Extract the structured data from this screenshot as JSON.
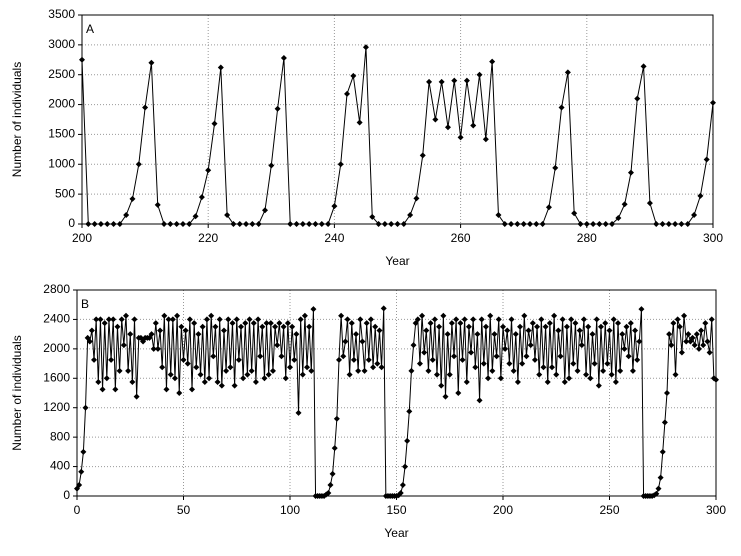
{
  "chart_data": [
    {
      "type": "line",
      "panel_label": "A",
      "xlabel": "Year",
      "ylabel": "Number of individuals",
      "color": "#000000",
      "grid": true,
      "xlim": [
        200,
        300
      ],
      "xticks": [
        200,
        220,
        240,
        260,
        280,
        300
      ],
      "ylim": [
        0,
        3500
      ],
      "yticks": [
        0,
        500,
        1000,
        1500,
        2000,
        2500,
        3000,
        3500
      ],
      "x": [
        200,
        201,
        202,
        203,
        204,
        205,
        206,
        207,
        208,
        209,
        210,
        211,
        212,
        213,
        214,
        215,
        216,
        217,
        218,
        219,
        220,
        221,
        222,
        223,
        224,
        225,
        226,
        227,
        228,
        229,
        230,
        231,
        232,
        233,
        234,
        235,
        236,
        237,
        238,
        239,
        240,
        241,
        242,
        243,
        244,
        245,
        246,
        247,
        248,
        249,
        250,
        251,
        252,
        253,
        254,
        255,
        256,
        257,
        258,
        259,
        260,
        261,
        262,
        263,
        264,
        265,
        266,
        267,
        268,
        269,
        270,
        271,
        272,
        273,
        274,
        275,
        276,
        277,
        278,
        279,
        280,
        281,
        282,
        283,
        284,
        285,
        286,
        287,
        288,
        289,
        290,
        291,
        292,
        293,
        294,
        295,
        296,
        297,
        298,
        299,
        300
      ],
      "values": [
        2750,
        0,
        0,
        0,
        0,
        0,
        0,
        150,
        420,
        1000,
        1950,
        2700,
        320,
        0,
        0,
        0,
        0,
        0,
        130,
        450,
        900,
        1680,
        2620,
        150,
        0,
        0,
        0,
        0,
        0,
        230,
        980,
        1930,
        2780,
        0,
        0,
        0,
        0,
        0,
        0,
        0,
        300,
        1000,
        2180,
        2480,
        1700,
        2960,
        120,
        0,
        0,
        0,
        0,
        0,
        150,
        430,
        1150,
        2380,
        1750,
        2380,
        1620,
        2400,
        1450,
        2400,
        1650,
        2500,
        1420,
        2720,
        150,
        0,
        0,
        0,
        0,
        0,
        0,
        0,
        280,
        940,
        1950,
        2540,
        180,
        0,
        0,
        0,
        0,
        0,
        0,
        100,
        330,
        860,
        2100,
        2640,
        350,
        0,
        0,
        0,
        0,
        0,
        0,
        150,
        470,
        1080,
        2030
      ]
    },
    {
      "type": "line",
      "panel_label": "B",
      "xlabel": "Year",
      "ylabel": "Number of individuals",
      "color": "#000000",
      "grid": true,
      "xlim": [
        0,
        300
      ],
      "xticks": [
        0,
        50,
        100,
        150,
        200,
        250,
        300
      ],
      "ylim": [
        0,
        2800
      ],
      "yticks": [
        0,
        400,
        800,
        1200,
        1600,
        2000,
        2400,
        2800
      ],
      "x": [
        0,
        1,
        2,
        3,
        4,
        5,
        6,
        7,
        8,
        9,
        10,
        11,
        12,
        13,
        14,
        15,
        16,
        17,
        18,
        19,
        20,
        21,
        22,
        23,
        24,
        25,
        26,
        27,
        28,
        29,
        30,
        31,
        32,
        33,
        34,
        35,
        36,
        37,
        38,
        39,
        40,
        41,
        42,
        43,
        44,
        45,
        46,
        47,
        48,
        49,
        50,
        51,
        52,
        53,
        54,
        55,
        56,
        57,
        58,
        59,
        60,
        61,
        62,
        63,
        64,
        65,
        66,
        67,
        68,
        69,
        70,
        71,
        72,
        73,
        74,
        75,
        76,
        77,
        78,
        79,
        80,
        81,
        82,
        83,
        84,
        85,
        86,
        87,
        88,
        89,
        90,
        91,
        92,
        93,
        94,
        95,
        96,
        97,
        98,
        99,
        100,
        101,
        102,
        103,
        104,
        105,
        106,
        107,
        108,
        109,
        110,
        111,
        112,
        113,
        114,
        115,
        116,
        117,
        118,
        119,
        120,
        121,
        122,
        123,
        124,
        125,
        126,
        127,
        128,
        129,
        130,
        131,
        132,
        133,
        134,
        135,
        136,
        137,
        138,
        139,
        140,
        141,
        142,
        143,
        144,
        145,
        146,
        147,
        148,
        149,
        150,
        151,
        152,
        153,
        154,
        155,
        156,
        157,
        158,
        159,
        160,
        161,
        162,
        163,
        164,
        165,
        166,
        167,
        168,
        169,
        170,
        171,
        172,
        173,
        174,
        175,
        176,
        177,
        178,
        179,
        180,
        181,
        182,
        183,
        184,
        185,
        186,
        187,
        188,
        189,
        190,
        191,
        192,
        193,
        194,
        195,
        196,
        197,
        198,
        199,
        200,
        201,
        202,
        203,
        204,
        205,
        206,
        207,
        208,
        209,
        210,
        211,
        212,
        213,
        214,
        215,
        216,
        217,
        218,
        219,
        220,
        221,
        222,
        223,
        224,
        225,
        226,
        227,
        228,
        229,
        230,
        231,
        232,
        233,
        234,
        235,
        236,
        237,
        238,
        239,
        240,
        241,
        242,
        243,
        244,
        245,
        246,
        247,
        248,
        249,
        250,
        251,
        252,
        253,
        254,
        255,
        256,
        257,
        258,
        259,
        260,
        261,
        262,
        263,
        264,
        265,
        266,
        267,
        268,
        269,
        270,
        271,
        272,
        273,
        274,
        275,
        276,
        277,
        278,
        279,
        280,
        281,
        282,
        283,
        284,
        285,
        286,
        287,
        288,
        289,
        290,
        291,
        292,
        293,
        294,
        295,
        296,
        297,
        298,
        299,
        300
      ],
      "values": [
        100,
        150,
        330,
        600,
        1200,
        2150,
        2100,
        2250,
        1850,
        2400,
        1550,
        2400,
        1450,
        2350,
        1600,
        2400,
        1850,
        2400,
        1450,
        2300,
        1700,
        2400,
        2050,
        2450,
        1700,
        2200,
        1550,
        2400,
        1350,
        2150,
        2150,
        2100,
        2150,
        2150,
        2150,
        2200,
        2000,
        2350,
        2000,
        2250,
        1750,
        2450,
        1450,
        2400,
        1650,
        2400,
        1600,
        2450,
        1400,
        2300,
        1850,
        2250,
        1800,
        2400,
        1450,
        2350,
        1750,
        2200,
        1650,
        2300,
        1550,
        2400,
        1600,
        2450,
        1900,
        2300,
        1550,
        2400,
        1500,
        2250,
        1700,
        2400,
        1750,
        2350,
        1500,
        2400,
        1850,
        2300,
        1600,
        2350,
        1650,
        2400,
        1700,
        2350,
        1550,
        2400,
        1900,
        2300,
        1600,
        2350,
        1650,
        2350,
        1700,
        2300,
        2050,
        2350,
        1900,
        2300,
        1600,
        2350,
        1750,
        2300,
        1850,
        2200,
        1130,
        2400,
        1650,
        2450,
        1750,
        2300,
        1700,
        2540,
        0,
        0,
        0,
        0,
        0,
        20,
        40,
        150,
        300,
        650,
        1050,
        1850,
        2450,
        1900,
        2100,
        2400,
        1650,
        2350,
        1850,
        2200,
        1700,
        2400,
        2100,
        1700,
        2350,
        1850,
        2400,
        1750,
        2300,
        1800,
        2250,
        1750,
        2550,
        0,
        0,
        0,
        0,
        0,
        0,
        10,
        40,
        150,
        400,
        750,
        1150,
        1700,
        2050,
        2350,
        2400,
        1800,
        2450,
        1950,
        2250,
        1700,
        2350,
        1850,
        2400,
        1650,
        2300,
        1500,
        2450,
        1350,
        2200,
        1650,
        2350,
        1900,
        2400,
        1400,
        2350,
        1850,
        2400,
        1550,
        2300,
        1950,
        2400,
        1750,
        2200,
        1300,
        2400,
        1800,
        2300,
        1600,
        2450,
        1700,
        2200,
        1900,
        2400,
        1600,
        2300,
        2000,
        2250,
        1800,
        2400,
        1700,
        2200,
        1550,
        2300,
        1800,
        2450,
        1900,
        2250,
        2050,
        2350,
        1850,
        2300,
        1650,
        2400,
        1750,
        2300,
        1550,
        2350,
        1750,
        2450,
        1650,
        2250,
        1900,
        2400,
        1550,
        2300,
        1600,
        2400,
        1800,
        2350,
        1700,
        2250,
        2050,
        2400,
        1650,
        2300,
        1600,
        2200,
        1800,
        2400,
        1500,
        2300,
        1700,
        2350,
        1800,
        2250,
        1650,
        2400,
        1550,
        2350,
        1700,
        2200,
        2000,
        2300,
        1900,
        2350,
        1700,
        2250,
        1850,
        2100,
        2540,
        0,
        0,
        0,
        0,
        0,
        10,
        30,
        100,
        250,
        600,
        1000,
        1400,
        2200,
        2050,
        2350,
        1650,
        2400,
        2300,
        1950,
        2450,
        2100,
        2200,
        2100,
        2150,
        2050,
        2200,
        2000,
        2250,
        2050,
        2350,
        2100,
        1950,
        2400,
        1600,
        1580
      ]
    }
  ]
}
